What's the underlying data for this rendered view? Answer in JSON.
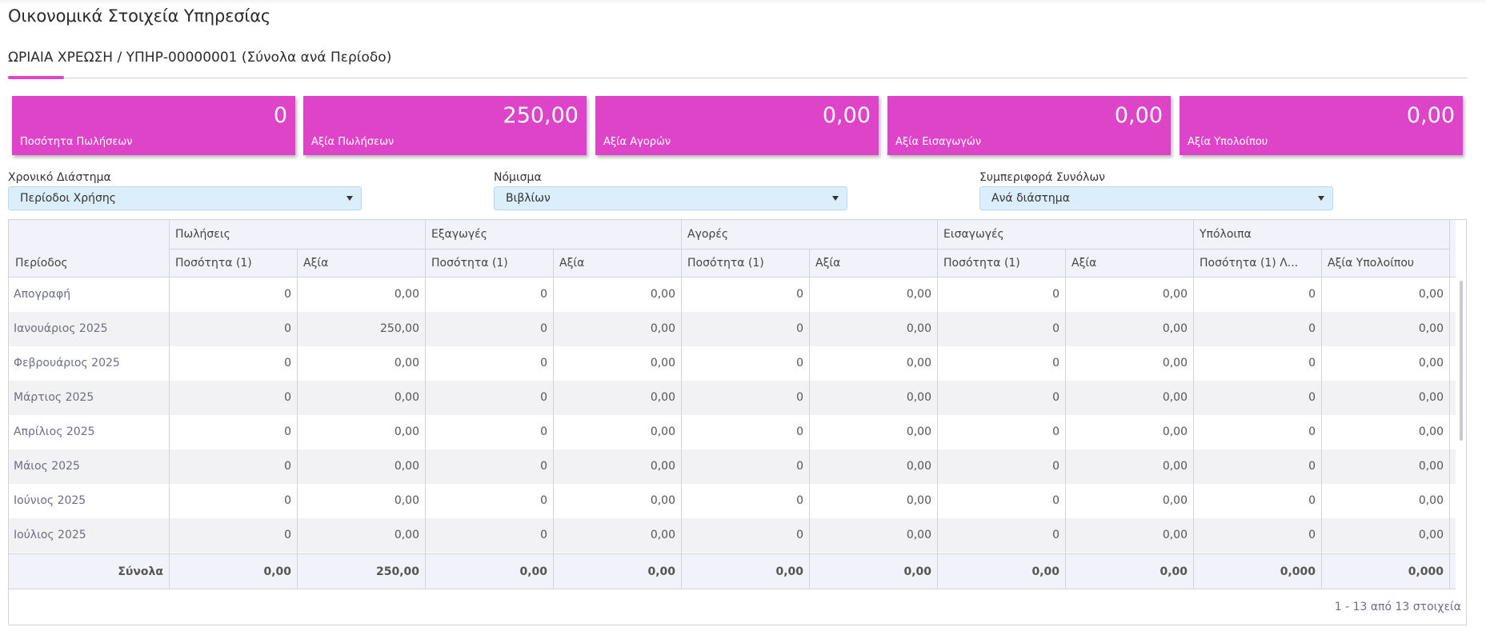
{
  "page": {
    "title": "Οικονομικά Στοιχεία Υπηρεσίας",
    "tab_label": "ΩΡΙΑΙΑ ΧΡΕΩΣΗ / ΥΠΗΡ-00000001 (Σύνολα ανά Περίοδο)"
  },
  "colors": {
    "accent": "#dd44c8",
    "select_bg": "#dbeefc",
    "header_bg": "#f2f2fa"
  },
  "cards": [
    {
      "value": "0",
      "label": "Ποσότητα Πωλήσεων"
    },
    {
      "value": "250,00",
      "label": "Αξία Πωλήσεων"
    },
    {
      "value": "0,00",
      "label": "Αξία Αγορών"
    },
    {
      "value": "0,00",
      "label": "Αξία Εισαγωγών"
    },
    {
      "value": "0,00",
      "label": "Αξία Υπολοίπου"
    }
  ],
  "filters": {
    "period": {
      "label": "Χρονικό Διάστημα",
      "value": "Περίοδοι Χρήσης"
    },
    "currency": {
      "label": "Νόμισμα",
      "value": "Βιβλίων"
    },
    "totals": {
      "label": "Συμπεριφορά Συνόλων",
      "value": "Ανά διάστημα"
    }
  },
  "grid": {
    "period_header": "Περίοδος",
    "groups": [
      "Πωλήσεις",
      "Εξαγωγές",
      "Αγορές",
      "Εισαγωγές",
      "Υπόλοιπα"
    ],
    "columns": [
      "Ποσότητα (1)",
      "Αξία",
      "Ποσότητα (1)",
      "Αξία",
      "Ποσότητα (1)",
      "Αξία",
      "Ποσότητα (1)",
      "Αξία",
      "Ποσότητα (1) Λ...",
      "Αξία Υπολοίπου"
    ],
    "rows": [
      {
        "period": "Απογραφή",
        "values": [
          "0",
          "0,00",
          "0",
          "0,00",
          "0",
          "0,00",
          "0",
          "0,00",
          "0",
          "0,00"
        ]
      },
      {
        "period": "Ιανουάριος 2025",
        "values": [
          "0",
          "250,00",
          "0",
          "0,00",
          "0",
          "0,00",
          "0",
          "0,00",
          "0",
          "0,00"
        ]
      },
      {
        "period": "Φεβρουάριος 2025",
        "values": [
          "0",
          "0,00",
          "0",
          "0,00",
          "0",
          "0,00",
          "0",
          "0,00",
          "0",
          "0,00"
        ]
      },
      {
        "period": "Μάρτιος 2025",
        "values": [
          "0",
          "0,00",
          "0",
          "0,00",
          "0",
          "0,00",
          "0",
          "0,00",
          "0",
          "0,00"
        ]
      },
      {
        "period": "Απρίλιος 2025",
        "values": [
          "0",
          "0,00",
          "0",
          "0,00",
          "0",
          "0,00",
          "0",
          "0,00",
          "0",
          "0,00"
        ]
      },
      {
        "period": "Μάιος 2025",
        "values": [
          "0",
          "0,00",
          "0",
          "0,00",
          "0",
          "0,00",
          "0",
          "0,00",
          "0",
          "0,00"
        ]
      },
      {
        "period": "Ιούνιος 2025",
        "values": [
          "0",
          "0,00",
          "0",
          "0,00",
          "0",
          "0,00",
          "0",
          "0,00",
          "0",
          "0,00"
        ]
      },
      {
        "period": "Ιούλιος 2025",
        "values": [
          "0",
          "0,00",
          "0",
          "0,00",
          "0",
          "0,00",
          "0",
          "0,00",
          "0",
          "0,00"
        ]
      }
    ],
    "totals": {
      "label": "Σύνολα",
      "values": [
        "0,00",
        "250,00",
        "0,00",
        "0,00",
        "0,00",
        "0,00",
        "0,00",
        "0,00",
        "0,000",
        "0,000"
      ]
    },
    "pager_info": "1 - 13 από 13 στοιχεία"
  }
}
